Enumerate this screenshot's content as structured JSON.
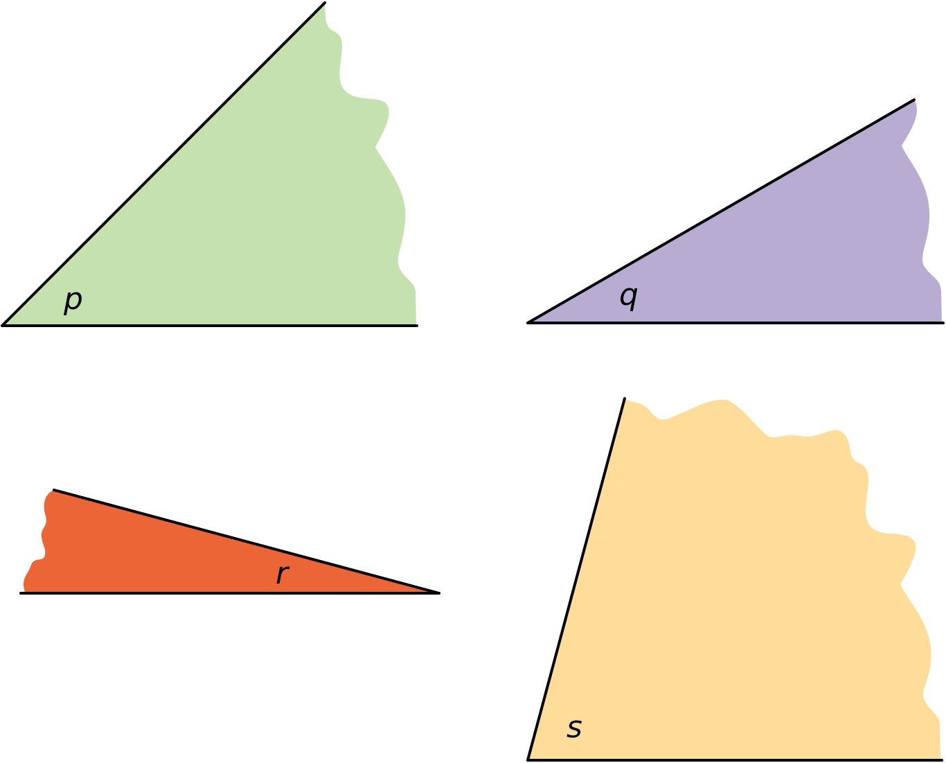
{
  "angles": [
    {
      "label": "p",
      "color": "#c5e1b0"
    },
    {
      "label": "q",
      "color": "#b8acd3"
    },
    {
      "label": "r",
      "color": "#ec6536"
    },
    {
      "label": "s",
      "color": "#fedd9a"
    }
  ]
}
